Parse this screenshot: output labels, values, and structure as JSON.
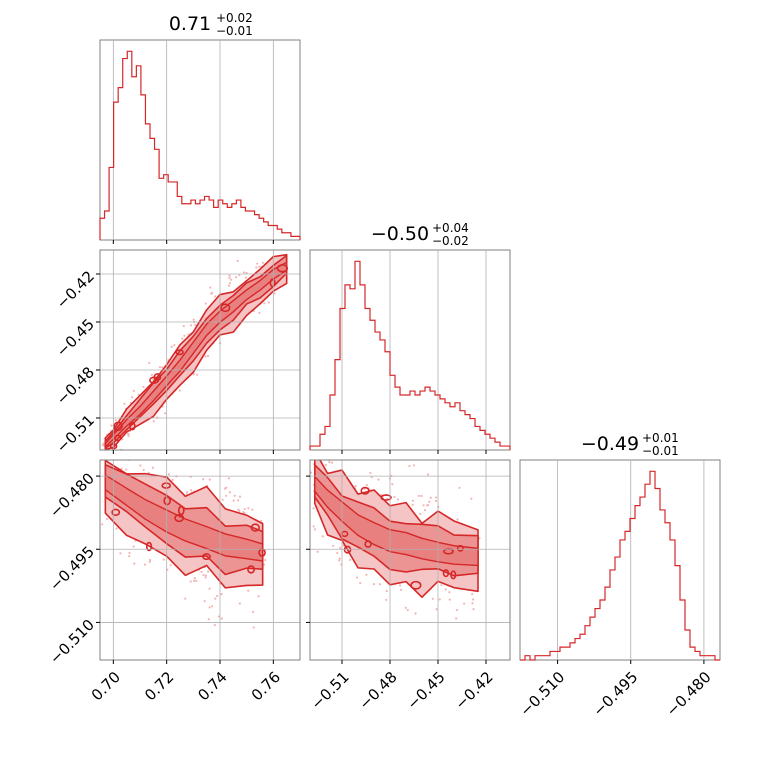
{
  "chart_data": {
    "type": "corner",
    "colors": {
      "series": "#d62728",
      "fill_inner": "#e88080",
      "fill_outer": "#f5c4c4",
      "scatter": "#f2b5b5",
      "grid": "#b0b0b0",
      "frame": "#808080"
    },
    "grid": true,
    "parameters": [
      {
        "title": {
          "value": "0.71",
          "upper": "+0.02",
          "lower": "−0.01"
        },
        "range": [
          0.695,
          0.77
        ],
        "ticks": [
          0.7,
          0.72,
          0.74,
          0.76
        ],
        "tick_labels": [
          "0.70",
          "0.72",
          "0.74",
          "0.76"
        ],
        "histogram": [
          6,
          8,
          20,
          38,
          42,
          50,
          52,
          45,
          48,
          40,
          32,
          28,
          25,
          17,
          18,
          16,
          16,
          12,
          10,
          10,
          11,
          10,
          11,
          12,
          11,
          9,
          11,
          10,
          9,
          10,
          11,
          9,
          8,
          8,
          7,
          6,
          5,
          4,
          4,
          3,
          2,
          2,
          1,
          1
        ]
      },
      {
        "title": {
          "value": "−0.50",
          "upper": "+0.04",
          "lower": "−0.02"
        },
        "range": [
          -0.53,
          -0.405
        ],
        "ticks": [
          -0.51,
          -0.48,
          -0.45,
          -0.42
        ],
        "tick_labels": [
          "−0.51",
          "−0.48",
          "−0.45",
          "−0.42"
        ],
        "histogram": [
          1,
          1,
          4,
          6,
          14,
          23,
          36,
          42,
          41,
          48,
          42,
          36,
          33,
          30,
          28,
          25,
          19,
          16,
          14,
          14,
          15,
          14,
          15,
          16,
          15,
          14,
          13,
          12,
          11,
          12,
          10,
          9,
          8,
          6,
          5,
          4,
          3,
          2,
          1,
          1
        ]
      },
      {
        "title": {
          "value": "−0.49",
          "upper": "+0.01",
          "lower": "−0.01"
        },
        "range": [
          -0.5177,
          -0.4767
        ],
        "ticks": [
          -0.51,
          -0.495,
          -0.48
        ],
        "tick_labels": [
          "−0.510",
          "−0.495",
          "−0.480"
        ],
        "histogram": [
          0,
          1,
          0,
          1,
          1,
          1,
          2,
          2,
          3,
          3,
          4,
          5,
          6,
          8,
          10,
          12,
          14,
          17,
          21,
          24,
          28,
          30,
          33,
          36,
          38,
          41,
          44,
          40,
          35,
          32,
          28,
          22,
          14,
          7,
          3,
          2,
          1,
          1,
          1,
          0
        ]
      }
    ],
    "pairs": [
      {
        "x_param": 0,
        "y_param": 1,
        "ridge": [
          [
            0.697,
            -0.527
          ],
          [
            0.7,
            -0.522
          ],
          [
            0.705,
            -0.513
          ],
          [
            0.71,
            -0.505
          ],
          [
            0.715,
            -0.496
          ],
          [
            0.72,
            -0.487
          ],
          [
            0.725,
            -0.477
          ],
          [
            0.73,
            -0.466
          ],
          [
            0.735,
            -0.455
          ],
          [
            0.74,
            -0.447
          ],
          [
            0.745,
            -0.44
          ],
          [
            0.75,
            -0.433
          ],
          [
            0.755,
            -0.427
          ],
          [
            0.76,
            -0.42
          ],
          [
            0.765,
            -0.415
          ]
        ],
        "band": [
          0.002,
          0.003,
          0.004,
          0.005,
          0.006,
          0.006,
          0.007,
          0.007,
          0.007,
          0.007,
          0.007,
          0.006,
          0.006,
          0.006,
          0.005
        ]
      },
      {
        "x_param": 0,
        "y_param": 2,
        "ridge": [
          [
            0.697,
            -0.4815
          ],
          [
            0.705,
            -0.484
          ],
          [
            0.712,
            -0.487
          ],
          [
            0.72,
            -0.4895
          ],
          [
            0.727,
            -0.491
          ],
          [
            0.735,
            -0.4925
          ],
          [
            0.742,
            -0.494
          ],
          [
            0.75,
            -0.495
          ],
          [
            0.756,
            -0.4955
          ]
        ],
        "band": [
          0.003,
          0.0035,
          0.004,
          0.0045,
          0.0045,
          0.0045,
          0.0045,
          0.004,
          0.0035
        ]
      },
      {
        "x_param": 1,
        "y_param": 2,
        "ridge": [
          [
            -0.527,
            -0.4815
          ],
          [
            -0.519,
            -0.4845
          ],
          [
            -0.51,
            -0.4875
          ],
          [
            -0.5,
            -0.49
          ],
          [
            -0.49,
            -0.4915
          ],
          [
            -0.48,
            -0.493
          ],
          [
            -0.47,
            -0.494
          ],
          [
            -0.46,
            -0.495
          ],
          [
            -0.45,
            -0.4955
          ],
          [
            -0.44,
            -0.496
          ],
          [
            -0.425,
            -0.4965
          ]
        ],
        "band": [
          0.003,
          0.0035,
          0.004,
          0.0042,
          0.0045,
          0.0045,
          0.0045,
          0.0042,
          0.004,
          0.0038,
          0.0035
        ]
      }
    ]
  }
}
